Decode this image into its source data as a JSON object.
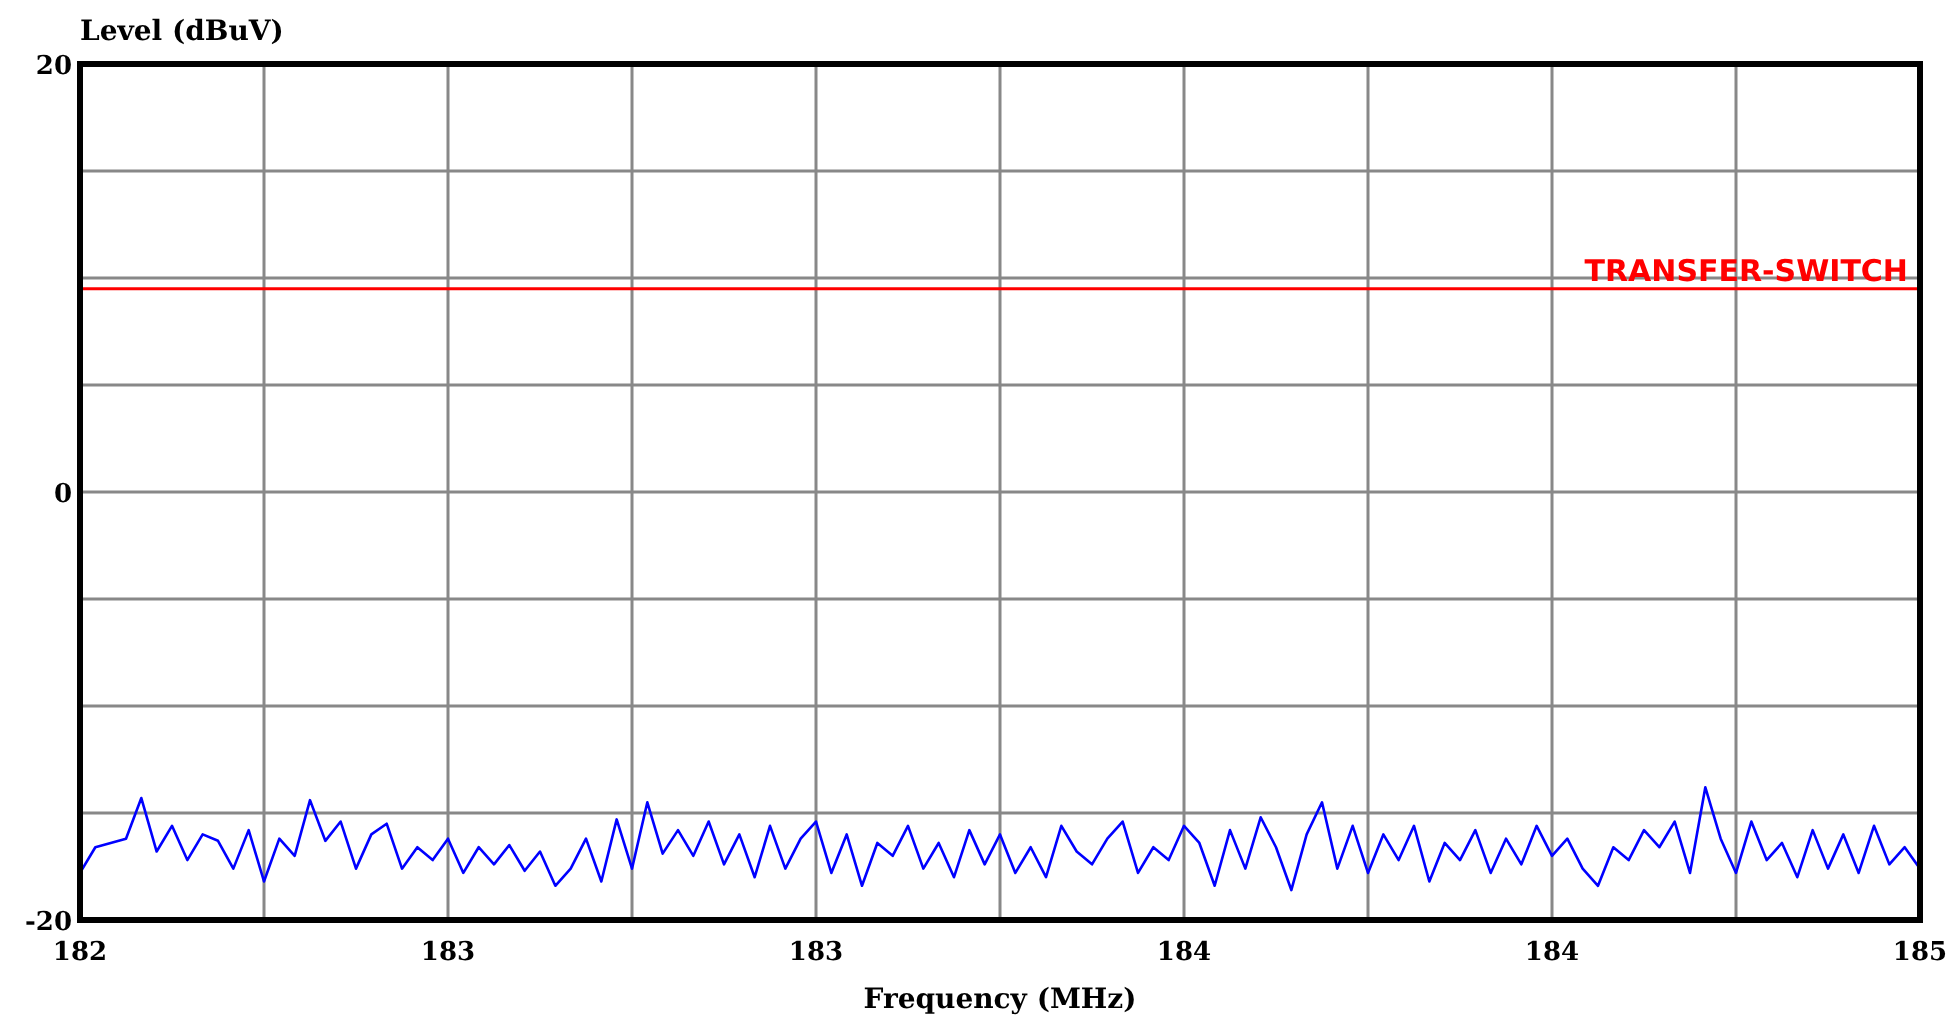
{
  "chart_data": {
    "type": "line",
    "xlabel": "Frequency (MHz)",
    "ylabel": "Level (dBuV)",
    "xlim": [
      182,
      185
    ],
    "ylim": [
      -20,
      20
    ],
    "xticks": [
      {
        "value": 182,
        "label": "182"
      },
      {
        "value": 182.3,
        "label": null
      },
      {
        "value": 182.6,
        "label": "183"
      },
      {
        "value": 182.9,
        "label": null
      },
      {
        "value": 183.2,
        "label": "183"
      },
      {
        "value": 183.5,
        "label": null
      },
      {
        "value": 183.8,
        "label": "184"
      },
      {
        "value": 184.1,
        "label": null
      },
      {
        "value": 184.4,
        "label": "184"
      },
      {
        "value": 184.7,
        "label": null
      },
      {
        "value": 185,
        "label": "185"
      }
    ],
    "yticks": [
      {
        "value": -20,
        "label": "-20"
      },
      {
        "value": -15,
        "label": null
      },
      {
        "value": -10,
        "label": null
      },
      {
        "value": -5,
        "label": null
      },
      {
        "value": 0,
        "label": "0"
      },
      {
        "value": 5,
        "label": null
      },
      {
        "value": 10,
        "label": null
      },
      {
        "value": 15,
        "label": null
      },
      {
        "value": 20,
        "label": "20"
      }
    ],
    "grid": true,
    "marker": "none",
    "line_style": "solid",
    "ref_lines": [
      {
        "axis": "y",
        "value": 9.5,
        "label": "TRANSFER-SWITCH",
        "color": "#ff0000"
      }
    ],
    "x": [
      182,
      182.025,
      182.05,
      182.075,
      182.1,
      182.125,
      182.15,
      182.175,
      182.2,
      182.225,
      182.25,
      182.275,
      182.3,
      182.325,
      182.35,
      182.375,
      182.4,
      182.425,
      182.45,
      182.475,
      182.5,
      182.525,
      182.55,
      182.575,
      182.6,
      182.625,
      182.65,
      182.675,
      182.7,
      182.725,
      182.75,
      182.775,
      182.8,
      182.825,
      182.85,
      182.875,
      182.9,
      182.925,
      182.95,
      182.975,
      183,
      183.025,
      183.05,
      183.075,
      183.1,
      183.125,
      183.15,
      183.175,
      183.2,
      183.225,
      183.25,
      183.275,
      183.3,
      183.325,
      183.35,
      183.375,
      183.4,
      183.425,
      183.45,
      183.475,
      183.5,
      183.525,
      183.55,
      183.575,
      183.6,
      183.625,
      183.65,
      183.675,
      183.7,
      183.725,
      183.75,
      183.775,
      183.8,
      183.825,
      183.85,
      183.875,
      183.9,
      183.925,
      183.95,
      183.975,
      184,
      184.025,
      184.05,
      184.075,
      184.1,
      184.125,
      184.15,
      184.175,
      184.2,
      184.225,
      184.25,
      184.275,
      184.3,
      184.325,
      184.35,
      184.375,
      184.4,
      184.425,
      184.45,
      184.475,
      184.5,
      184.525,
      184.55,
      184.575,
      184.6,
      184.625,
      184.65,
      184.675,
      184.7,
      184.725,
      184.75,
      184.775,
      184.8,
      184.825,
      184.85,
      184.875,
      184.9,
      184.925,
      184.95,
      184.975,
      185
    ],
    "series": [
      {
        "color": "#0000ff",
        "values": [
          -17.8,
          -16.6,
          -16.4,
          -16.2,
          -14.3,
          -16.8,
          -15.6,
          -17.2,
          -16.0,
          -16.3,
          -17.6,
          -15.8,
          -18.2,
          -16.2,
          -17.0,
          -14.4,
          -16.3,
          -15.4,
          -17.6,
          -16.0,
          -15.5,
          -17.6,
          -16.6,
          -17.2,
          -16.2,
          -17.8,
          -16.6,
          -17.4,
          -16.5,
          -17.7,
          -16.8,
          -18.4,
          -17.6,
          -16.2,
          -18.2,
          -15.3,
          -17.6,
          -14.5,
          -16.9,
          -15.8,
          -17.0,
          -15.4,
          -17.4,
          -16.0,
          -18.0,
          -15.6,
          -17.6,
          -16.2,
          -15.4,
          -17.8,
          -16.0,
          -18.4,
          -16.4,
          -17.0,
          -15.6,
          -17.6,
          -16.4,
          -18.0,
          -15.8,
          -17.4,
          -16.0,
          -17.8,
          -16.6,
          -18.0,
          -15.6,
          -16.8,
          -17.4,
          -16.2,
          -15.4,
          -17.8,
          -16.6,
          -17.2,
          -15.6,
          -16.4,
          -18.4,
          -15.8,
          -17.6,
          -15.2,
          -16.6,
          -18.6,
          -16.0,
          -14.5,
          -17.6,
          -15.6,
          -17.8,
          -16.0,
          -17.2,
          -15.6,
          -18.2,
          -16.4,
          -17.2,
          -15.8,
          -17.8,
          -16.2,
          -17.4,
          -15.6,
          -17.0,
          -16.2,
          -17.6,
          -18.4,
          -16.6,
          -17.2,
          -15.8,
          -16.6,
          -15.4,
          -17.8,
          -13.8,
          -16.2,
          -17.8,
          -15.4,
          -17.2,
          -16.4,
          -18.0,
          -15.8,
          -17.6,
          -16.0,
          -17.8,
          -15.6,
          -17.4,
          -16.6,
          -17.6
        ]
      }
    ]
  }
}
